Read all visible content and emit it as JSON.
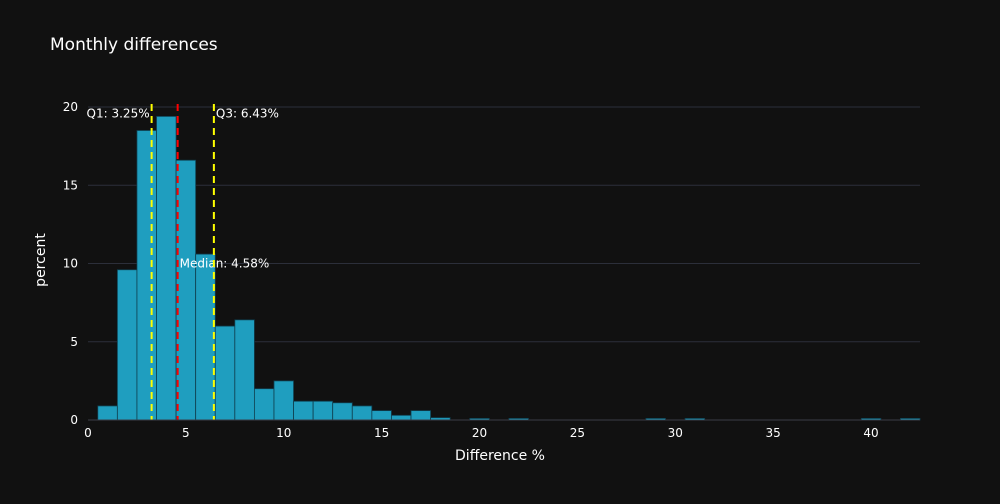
{
  "chart_data": {
    "type": "histogram",
    "title": "Monthly differences",
    "xlabel": "Difference %",
    "ylabel": "percent",
    "xlim": [
      0,
      42.5
    ],
    "ylim": [
      0,
      20
    ],
    "x_ticks": [
      0,
      5,
      10,
      15,
      20,
      25,
      30,
      35,
      40
    ],
    "y_ticks": [
      0,
      5,
      10,
      15,
      20
    ],
    "grid": true,
    "bin_width": 1,
    "bins": [
      {
        "start": 0.5,
        "value": 0.9
      },
      {
        "start": 1.5,
        "value": 9.6
      },
      {
        "start": 2.5,
        "value": 18.5
      },
      {
        "start": 3.5,
        "value": 19.4
      },
      {
        "start": 4.5,
        "value": 16.6
      },
      {
        "start": 5.5,
        "value": 10.6
      },
      {
        "start": 6.5,
        "value": 6.0
      },
      {
        "start": 7.5,
        "value": 6.4
      },
      {
        "start": 8.5,
        "value": 2.0
      },
      {
        "start": 9.5,
        "value": 2.5
      },
      {
        "start": 10.5,
        "value": 1.2
      },
      {
        "start": 11.5,
        "value": 1.2
      },
      {
        "start": 12.5,
        "value": 1.1
      },
      {
        "start": 13.5,
        "value": 0.9
      },
      {
        "start": 14.5,
        "value": 0.6
      },
      {
        "start": 15.5,
        "value": 0.3
      },
      {
        "start": 16.5,
        "value": 0.6
      },
      {
        "start": 17.5,
        "value": 0.15
      },
      {
        "start": 19.5,
        "value": 0.1
      },
      {
        "start": 21.5,
        "value": 0.1
      },
      {
        "start": 28.5,
        "value": 0.1
      },
      {
        "start": 30.5,
        "value": 0.1
      },
      {
        "start": 39.5,
        "value": 0.1
      },
      {
        "start": 41.5,
        "value": 0.1
      }
    ],
    "reference_lines": [
      {
        "name": "q1",
        "x": 3.25,
        "label": "Q1: 3.25%",
        "color": "#ffff00",
        "label_y": 19.6,
        "label_side": "left"
      },
      {
        "name": "median",
        "x": 4.58,
        "label": "Median: 4.58%",
        "color": "#ff0000",
        "label_y": 10,
        "label_side": "right"
      },
      {
        "name": "q3",
        "x": 6.43,
        "label": "Q3: 6.43%",
        "color": "#ffff00",
        "label_y": 19.6,
        "label_side": "right"
      }
    ],
    "colors": {
      "bar_fill": "#1f9ebf",
      "bar_stroke": "#0f3f4f",
      "background": "#111111",
      "grid": "#2c2f3a",
      "text": "#ffffff"
    }
  }
}
